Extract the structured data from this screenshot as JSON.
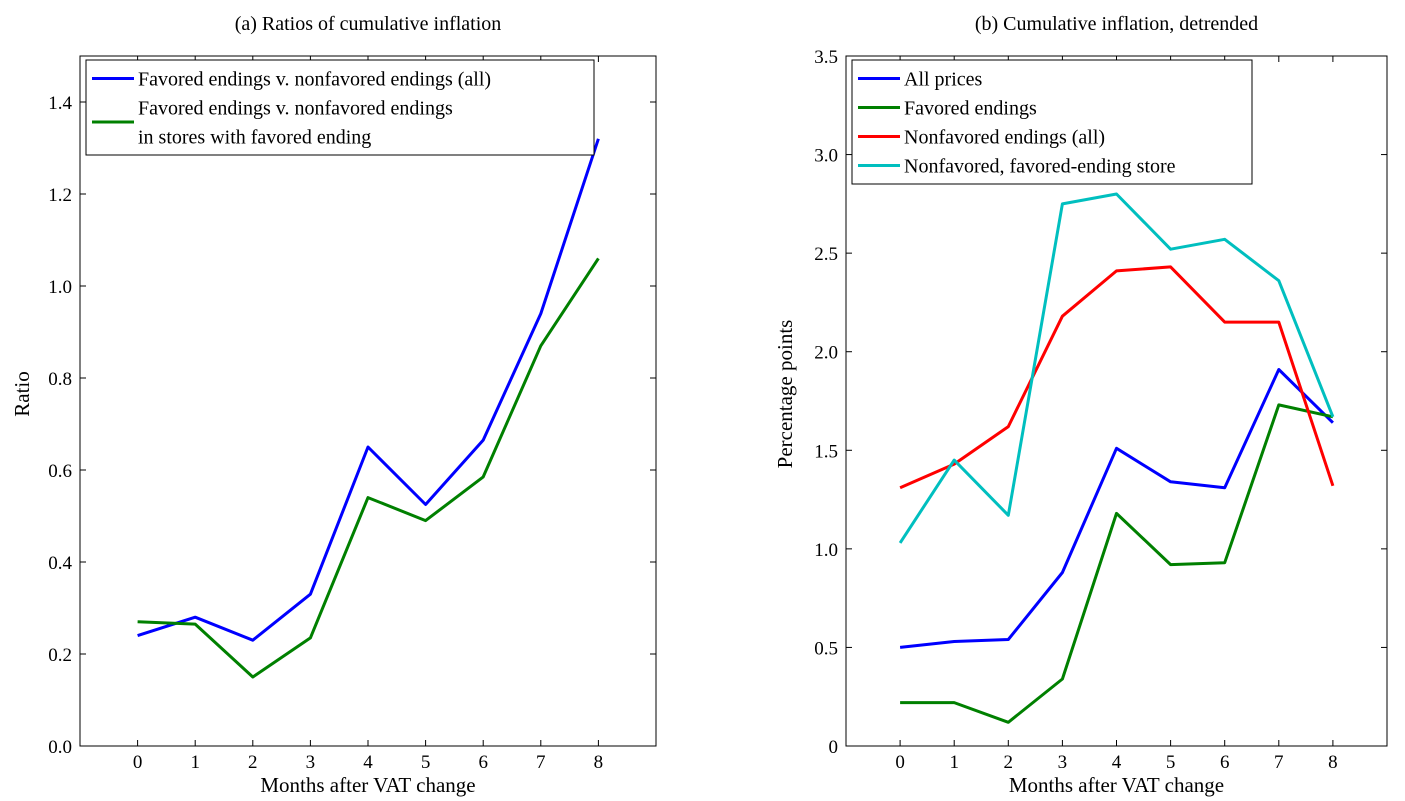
{
  "chart_data": [
    {
      "type": "line",
      "title": "(a) Ratios of cumulative inflation",
      "xlabel": "Months after VAT change",
      "ylabel": "Ratio",
      "x": [
        0,
        1,
        2,
        3,
        4,
        5,
        6,
        7,
        8
      ],
      "xlim": [
        -1,
        9
      ],
      "ylim": [
        0,
        1.5
      ],
      "xticks": [
        "0",
        "1",
        "2",
        "3",
        "4",
        "5",
        "6",
        "7",
        "8"
      ],
      "yticks": [
        "0.0",
        "0.2",
        "0.4",
        "0.6",
        "0.8",
        "1.0",
        "1.2",
        "1.4"
      ],
      "ytick_values": [
        0,
        0.2,
        0.4,
        0.6,
        0.8,
        1.0,
        1.2,
        1.4
      ],
      "grid": false,
      "legend_position": "top-left",
      "series": [
        {
          "name": "Favored endings v. nonfavored endings (all)",
          "color": "#0000ff",
          "values": [
            0.24,
            0.28,
            0.23,
            0.33,
            0.65,
            0.525,
            0.665,
            0.94,
            1.32
          ]
        },
        {
          "name": "Favored endings v. nonfavored endings\nin stores with favored ending",
          "color": "#008000",
          "values": [
            0.27,
            0.265,
            0.15,
            0.235,
            0.54,
            0.49,
            0.585,
            0.87,
            1.06
          ]
        }
      ]
    },
    {
      "type": "line",
      "title": "(b) Cumulative inflation, detrended",
      "xlabel": "Months after VAT change",
      "ylabel": "Percentage points",
      "x": [
        0,
        1,
        2,
        3,
        4,
        5,
        6,
        7,
        8
      ],
      "xlim": [
        -1,
        9
      ],
      "ylim": [
        0,
        3.5
      ],
      "xticks": [
        "0",
        "1",
        "2",
        "3",
        "4",
        "5",
        "6",
        "7",
        "8"
      ],
      "yticks": [
        "0",
        "0.5",
        "1.0",
        "1.5",
        "2.0",
        "2.5",
        "3.0",
        "3.5"
      ],
      "ytick_values": [
        0,
        0.5,
        1.0,
        1.5,
        2.0,
        2.5,
        3.0,
        3.5
      ],
      "grid": false,
      "legend_position": "top-left",
      "series": [
        {
          "name": "All prices",
          "color": "#0000ff",
          "values": [
            0.5,
            0.53,
            0.54,
            0.88,
            1.51,
            1.34,
            1.31,
            1.91,
            1.64
          ]
        },
        {
          "name": "Favored endings",
          "color": "#008000",
          "values": [
            0.22,
            0.22,
            0.12,
            0.34,
            1.18,
            0.92,
            0.93,
            1.73,
            1.67
          ]
        },
        {
          "name": "Nonfavored endings (all)",
          "color": "#ff0000",
          "values": [
            1.31,
            1.43,
            1.62,
            2.18,
            2.41,
            2.43,
            2.15,
            2.15,
            1.32
          ]
        },
        {
          "name": "Nonfavored, favored-ending store",
          "color": "#00bfbf",
          "values": [
            1.03,
            1.45,
            1.17,
            2.75,
            2.8,
            2.52,
            2.57,
            2.36,
            1.67
          ]
        }
      ]
    }
  ]
}
